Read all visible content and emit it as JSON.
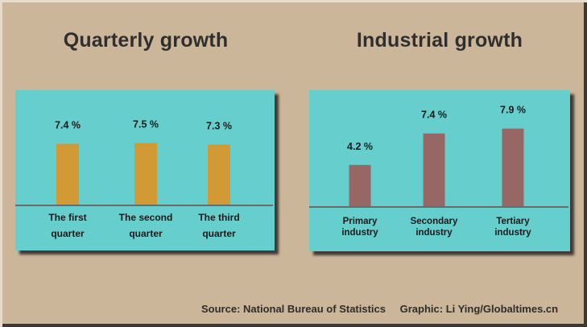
{
  "footer": {
    "source": "Source: National Bureau of Statistics",
    "credit": "Graphic: Li Ying/Globaltimes.cn"
  },
  "colors": {
    "background": "#ccb69a",
    "panel": "#66cfcd",
    "quarter_bar": "#d19a35",
    "industry_bar": "#976765",
    "baseline": "#6b6b6b"
  },
  "chart_data": [
    {
      "type": "bar",
      "title": "Quarterly growth",
      "categories": [
        [
          "The first",
          "quarter"
        ],
        [
          "The second",
          "quarter"
        ],
        [
          "The third",
          "quarter"
        ]
      ],
      "values": [
        7.4,
        7.5,
        7.3
      ],
      "value_labels": [
        "7.4 %",
        "7.5 %",
        "7.3 %"
      ],
      "xlabel": "",
      "ylabel": "",
      "unit": "%",
      "grid": false
    },
    {
      "type": "bar",
      "title": "Industrial growth",
      "categories": [
        [
          "Primary",
          "industry"
        ],
        [
          "Secondary",
          "industry"
        ],
        [
          "Tertiary",
          "industry"
        ]
      ],
      "values": [
        4.2,
        7.4,
        7.9
      ],
      "value_labels": [
        "4.2 %",
        "7.4 %",
        "7.9 %"
      ],
      "xlabel": "",
      "ylabel": "",
      "unit": "%",
      "grid": false
    }
  ]
}
